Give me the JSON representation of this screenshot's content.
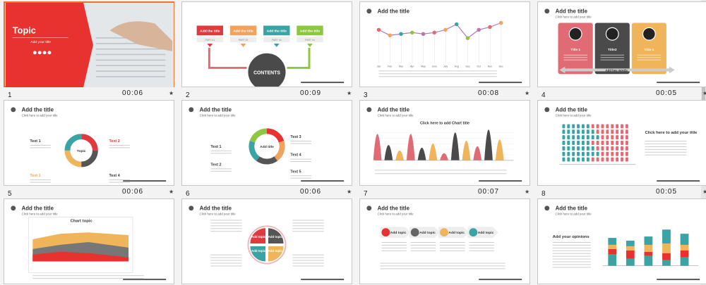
{
  "slides": [
    {
      "number": "1",
      "time": "00:06",
      "title": "Topic",
      "subtitle": "Add your title"
    },
    {
      "number": "2",
      "time": "00:09",
      "labels": [
        "Add the title",
        "Add the title",
        "Add the title",
        "Add the title"
      ],
      "parts": [
        "PART 01",
        "PART 02",
        "PART 03",
        "PART 04"
      ],
      "center": "CONTENTS"
    },
    {
      "number": "3",
      "time": "00:08",
      "title": "Add the title",
      "months": [
        "Jan",
        "Feb",
        "Mar",
        "Apr",
        "May",
        "June",
        "July",
        "Aug",
        "Sep",
        "Oct",
        "Nov",
        "Dec"
      ]
    },
    {
      "number": "4",
      "time": "00:05",
      "title": "Add the title",
      "subtitle": "Click here to add your title",
      "cards": [
        "Title 1",
        "Title2",
        "Title 1"
      ],
      "banner": "Add key words"
    },
    {
      "number": "5",
      "time": "00:06",
      "title": "Add the title",
      "subtitle": "Click here to add your title",
      "center": "Topic",
      "items": [
        "Text 1",
        "Text 2",
        "Text 1",
        "Text 4"
      ]
    },
    {
      "number": "6",
      "time": "00:06",
      "title": "Add the title",
      "subtitle": "Click here to add your title",
      "center": "Add title",
      "items": [
        "Text 1",
        "Text 2",
        "Text 3",
        "Text 4",
        "Text 5"
      ]
    },
    {
      "number": "7",
      "time": "00:07",
      "title": "Add the title",
      "subtitle": "Click here to add your title",
      "chart_title": "Click here to add Chart title"
    },
    {
      "number": "8",
      "time": "00:05",
      "title": "Add the title",
      "subtitle": "Click here to add your title",
      "side": "Click here to add your title"
    },
    {
      "title": "Add the title",
      "subtitle": "Click here to add your title",
      "chart_title": "Chart topic"
    },
    {
      "title": "Add the title",
      "subtitle": "Click here to add your title",
      "segments": [
        "Add topic",
        "Add topic",
        "Add topic",
        "Add topic"
      ]
    },
    {
      "title": "Add the title",
      "subtitle": "Click here to add your title",
      "arrows": [
        "Add topic",
        "Add topic",
        "Add topic",
        "Add topic"
      ]
    },
    {
      "title": "Add the title",
      "subtitle": "Click here to add your title",
      "heading": "Add your opinions"
    }
  ]
}
